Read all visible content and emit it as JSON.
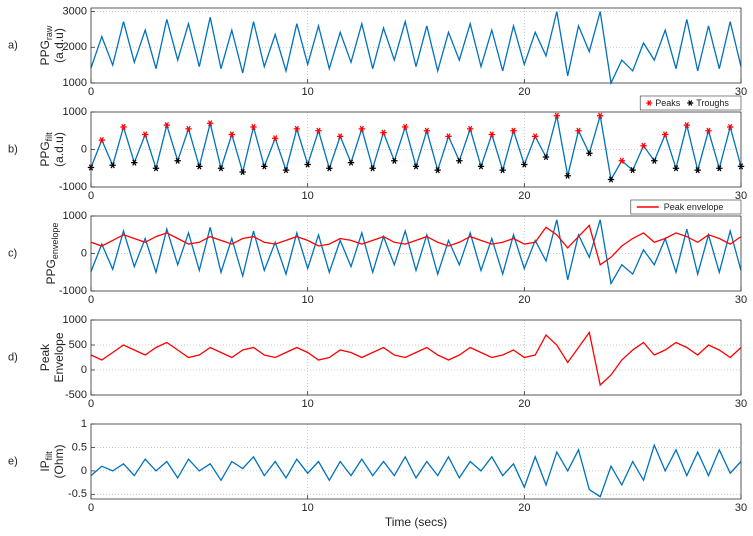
{
  "chart_data": [
    {
      "type": "line",
      "panel_label": "a)",
      "ylabel": {
        "text": "PPG",
        "sub": "raw",
        "line2": "(a.d.u)"
      },
      "x": [
        0,
        0.5,
        1,
        1.5,
        2,
        2.5,
        3,
        3.5,
        4,
        4.5,
        5,
        5.5,
        6,
        6.5,
        7,
        7.5,
        8,
        8.5,
        9,
        9.5,
        10,
        10.5,
        11,
        11.5,
        12,
        12.5,
        13,
        13.5,
        14,
        14.5,
        15,
        15.5,
        16,
        16.5,
        17,
        17.5,
        18,
        18.5,
        19,
        19.5,
        20,
        20.5,
        21,
        21.5,
        22,
        22.5,
        23,
        23.5,
        24,
        24.5,
        25,
        25.5,
        26,
        26.5,
        27,
        27.5,
        28,
        28.5,
        29,
        29.5,
        30
      ],
      "series": [
        {
          "color": "#0072bd",
          "values": [
            1420,
            2300,
            1500,
            2720,
            1580,
            2480,
            1400,
            2780,
            1640,
            2660,
            1460,
            2840,
            1400,
            2480,
            1280,
            2720,
            1460,
            2360,
            1340,
            2660,
            1520,
            2600,
            1400,
            2420,
            1580,
            2660,
            1400,
            2540,
            1640,
            2720,
            1460,
            2600,
            1340,
            2420,
            1640,
            2660,
            1460,
            2480,
            1340,
            2600,
            1520,
            2420,
            1760,
            3000,
            1200,
            2600,
            1880,
            3000,
            1000,
            1640,
            1340,
            2120,
            1640,
            2480,
            1400,
            2780,
            1340,
            2600,
            1400,
            2720,
            1460
          ]
        }
      ],
      "xlim": [
        0,
        30
      ],
      "ylim": [
        1000,
        3100
      ],
      "xticks": [
        0,
        10,
        20,
        30
      ],
      "yticks": [
        1000,
        2000,
        3000
      ],
      "grid": true
    },
    {
      "type": "line",
      "panel_label": "b)",
      "ylabel": {
        "text": "PPG",
        "sub": "filt",
        "line2": "(a.d.u)"
      },
      "x": [
        0,
        0.5,
        1,
        1.5,
        2,
        2.5,
        3,
        3.5,
        4,
        4.5,
        5,
        5.5,
        6,
        6.5,
        7,
        7.5,
        8,
        8.5,
        9,
        9.5,
        10,
        10.5,
        11,
        11.5,
        12,
        12.5,
        13,
        13.5,
        14,
        14.5,
        15,
        15.5,
        16,
        16.5,
        17,
        17.5,
        18,
        18.5,
        19,
        19.5,
        20,
        20.5,
        21,
        21.5,
        22,
        22.5,
        23,
        23.5,
        24,
        24.5,
        25,
        25.5,
        26,
        26.5,
        27,
        27.5,
        28,
        28.5,
        29,
        29.5,
        30
      ],
      "series": [
        {
          "color": "#0072bd",
          "values": [
            -480,
            250,
            -420,
            600,
            -350,
            400,
            -500,
            650,
            -300,
            550,
            -450,
            700,
            -500,
            400,
            -600,
            600,
            -450,
            300,
            -550,
            550,
            -400,
            500,
            -500,
            350,
            -350,
            550,
            -500,
            450,
            -300,
            600,
            -450,
            500,
            -550,
            350,
            -300,
            550,
            -450,
            400,
            -550,
            500,
            -400,
            350,
            -200,
            900,
            -700,
            500,
            -100,
            900,
            -800,
            -300,
            -550,
            100,
            -300,
            400,
            -500,
            650,
            -550,
            500,
            -500,
            600,
            -450
          ]
        },
        {
          "name": "Peaks",
          "type": "scatter",
          "color": "#ff0000",
          "x": [
            0.5,
            1.5,
            2.5,
            3.5,
            4.5,
            5.5,
            6.5,
            7.5,
            8.5,
            9.5,
            10.5,
            11.5,
            12.5,
            13.5,
            14.5,
            15.5,
            16.5,
            17.5,
            18.5,
            19.5,
            20.5,
            21.5,
            22.5,
            23.5,
            24.5,
            25.5,
            26.5,
            27.5,
            28.5,
            29.5
          ],
          "values": [
            250,
            600,
            400,
            650,
            550,
            700,
            400,
            600,
            300,
            550,
            500,
            350,
            550,
            450,
            600,
            500,
            350,
            550,
            400,
            500,
            350,
            900,
            500,
            900,
            -300,
            100,
            400,
            650,
            500,
            600
          ]
        },
        {
          "name": "Troughs",
          "type": "scatter",
          "color": "#000000",
          "x": [
            0,
            1,
            2,
            3,
            4,
            5,
            6,
            7,
            8,
            9,
            10,
            11,
            12,
            13,
            14,
            15,
            16,
            17,
            18,
            19,
            20,
            21,
            22,
            23,
            24,
            25,
            26,
            27,
            28,
            29,
            30
          ],
          "values": [
            -480,
            -420,
            -350,
            -500,
            -300,
            -450,
            -500,
            -600,
            -450,
            -550,
            -400,
            -500,
            -350,
            -500,
            -300,
            -450,
            -550,
            -300,
            -450,
            -550,
            -400,
            -200,
            -700,
            -100,
            -800,
            -550,
            -300,
            -500,
            -550,
            -500,
            -450
          ]
        }
      ],
      "xlim": [
        0,
        30
      ],
      "ylim": [
        -1000,
        1000
      ],
      "xticks": [
        0,
        10,
        20,
        30
      ],
      "yticks": [
        -1000,
        0,
        1000
      ],
      "grid": true
    },
    {
      "type": "line",
      "panel_label": "c)",
      "ylabel": {
        "text": "PPG",
        "sub": "envelope"
      },
      "x": [
        0,
        0.5,
        1,
        1.5,
        2,
        2.5,
        3,
        3.5,
        4,
        4.5,
        5,
        5.5,
        6,
        6.5,
        7,
        7.5,
        8,
        8.5,
        9,
        9.5,
        10,
        10.5,
        11,
        11.5,
        12,
        12.5,
        13,
        13.5,
        14,
        14.5,
        15,
        15.5,
        16,
        16.5,
        17,
        17.5,
        18,
        18.5,
        19,
        19.5,
        20,
        20.5,
        21,
        21.5,
        22,
        22.5,
        23,
        23.5,
        24,
        24.5,
        25,
        25.5,
        26,
        26.5,
        27,
        27.5,
        28,
        28.5,
        29,
        29.5,
        30
      ],
      "series": [
        {
          "color": "#0072bd",
          "values": [
            -480,
            250,
            -420,
            600,
            -350,
            400,
            -500,
            650,
            -300,
            550,
            -450,
            700,
            -500,
            400,
            -600,
            600,
            -450,
            300,
            -550,
            550,
            -400,
            500,
            -500,
            350,
            -350,
            550,
            -500,
            450,
            -300,
            600,
            -450,
            500,
            -550,
            350,
            -300,
            550,
            -450,
            400,
            -550,
            500,
            -400,
            350,
            -200,
            900,
            -700,
            500,
            -100,
            900,
            -800,
            -300,
            -550,
            100,
            -300,
            400,
            -500,
            650,
            -550,
            500,
            -500,
            600,
            -450
          ]
        },
        {
          "name": "Peak envelope",
          "color": "#ff0000",
          "values": [
            300,
            200,
            350,
            500,
            400,
            300,
            450,
            550,
            400,
            250,
            300,
            450,
            350,
            250,
            400,
            450,
            300,
            250,
            350,
            450,
            350,
            200,
            250,
            400,
            350,
            250,
            350,
            450,
            300,
            250,
            350,
            450,
            300,
            200,
            300,
            450,
            350,
            250,
            300,
            400,
            250,
            300,
            700,
            500,
            150,
            450,
            750,
            -300,
            -100,
            200,
            400,
            550,
            300,
            400,
            550,
            450,
            300,
            500,
            400,
            250,
            450
          ]
        }
      ],
      "xlim": [
        0,
        30
      ],
      "ylim": [
        -1000,
        1000
      ],
      "xticks": [
        0,
        10,
        20,
        30
      ],
      "yticks": [
        -1000,
        0,
        1000
      ],
      "grid": true
    },
    {
      "type": "line",
      "panel_label": "d)",
      "ylabel": {
        "text": "Peak",
        "line2": "Envelope"
      },
      "x": [
        0,
        0.5,
        1,
        1.5,
        2,
        2.5,
        3,
        3.5,
        4,
        4.5,
        5,
        5.5,
        6,
        6.5,
        7,
        7.5,
        8,
        8.5,
        9,
        9.5,
        10,
        10.5,
        11,
        11.5,
        12,
        12.5,
        13,
        13.5,
        14,
        14.5,
        15,
        15.5,
        16,
        16.5,
        17,
        17.5,
        18,
        18.5,
        19,
        19.5,
        20,
        20.5,
        21,
        21.5,
        22,
        22.5,
        23,
        23.5,
        24,
        24.5,
        25,
        25.5,
        26,
        26.5,
        27,
        27.5,
        28,
        28.5,
        29,
        29.5,
        30
      ],
      "series": [
        {
          "color": "#ff0000",
          "values": [
            300,
            200,
            350,
            500,
            400,
            300,
            450,
            550,
            400,
            250,
            300,
            450,
            350,
            250,
            400,
            450,
            300,
            250,
            350,
            450,
            350,
            200,
            250,
            400,
            350,
            250,
            350,
            450,
            300,
            250,
            350,
            450,
            300,
            200,
            300,
            450,
            350,
            250,
            300,
            400,
            250,
            300,
            700,
            500,
            150,
            450,
            750,
            -300,
            -100,
            200,
            400,
            550,
            300,
            400,
            550,
            450,
            300,
            500,
            400,
            250,
            450
          ]
        }
      ],
      "xlim": [
        0,
        30
      ],
      "ylim": [
        -500,
        1000
      ],
      "xticks": [
        0,
        10,
        20,
        30
      ],
      "yticks": [
        -500,
        0,
        500,
        1000
      ],
      "grid": true
    },
    {
      "type": "line",
      "panel_label": "e)",
      "ylabel": {
        "text": "IP",
        "sub": "filt",
        "line2": "(Ohm)"
      },
      "xlabel": "Time (secs)",
      "x": [
        0,
        0.5,
        1,
        1.5,
        2,
        2.5,
        3,
        3.5,
        4,
        4.5,
        5,
        5.5,
        6,
        6.5,
        7,
        7.5,
        8,
        8.5,
        9,
        9.5,
        10,
        10.5,
        11,
        11.5,
        12,
        12.5,
        13,
        13.5,
        14,
        14.5,
        15,
        15.5,
        16,
        16.5,
        17,
        17.5,
        18,
        18.5,
        19,
        19.5,
        20,
        20.5,
        21,
        21.5,
        22,
        22.5,
        23,
        23.5,
        24,
        24.5,
        25,
        25.5,
        26,
        26.5,
        27,
        27.5,
        28,
        28.5,
        29,
        29.5,
        30
      ],
      "series": [
        {
          "color": "#0072bd",
          "values": [
            -0.1,
            0.1,
            0.0,
            0.15,
            -0.1,
            0.25,
            0.0,
            0.2,
            -0.15,
            0.25,
            0.0,
            0.15,
            -0.2,
            0.2,
            0.05,
            0.3,
            -0.1,
            0.2,
            -0.15,
            0.25,
            -0.05,
            0.2,
            -0.2,
            0.2,
            -0.1,
            0.25,
            -0.1,
            0.2,
            -0.1,
            0.3,
            -0.15,
            0.2,
            -0.1,
            0.3,
            -0.15,
            0.2,
            0.0,
            0.3,
            -0.1,
            0.15,
            -0.35,
            0.3,
            -0.3,
            0.4,
            0.0,
            0.45,
            -0.4,
            -0.55,
            0.1,
            -0.3,
            0.2,
            -0.2,
            0.55,
            0.0,
            0.45,
            -0.1,
            0.4,
            -0.1,
            0.45,
            -0.05,
            0.2
          ]
        }
      ],
      "xlim": [
        0,
        30
      ],
      "ylim": [
        -0.6,
        1
      ],
      "xticks": [
        0,
        10,
        20,
        30
      ],
      "yticks": [
        -0.5,
        0,
        0.5,
        1
      ],
      "grid": true
    }
  ]
}
